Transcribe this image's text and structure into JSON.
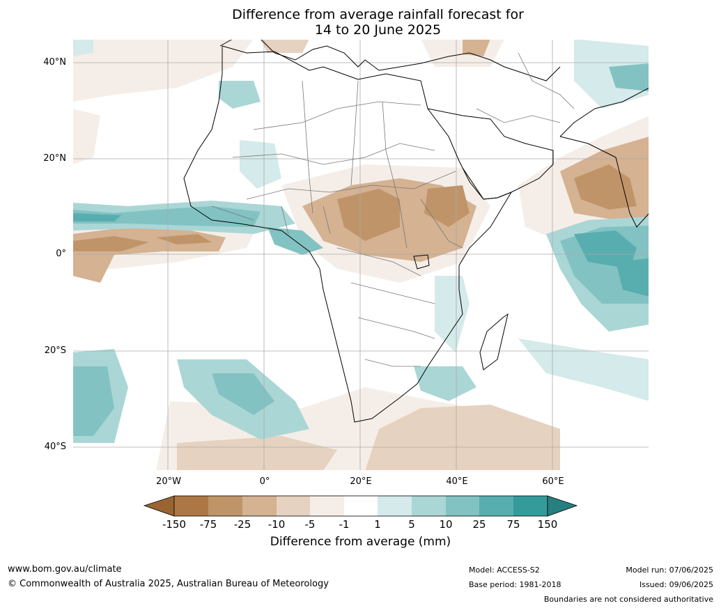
{
  "title": {
    "line1": "Difference from average rainfall forecast for",
    "line2": "14 to 20 June 2025"
  },
  "axes": {
    "lat_labels": [
      "40°N",
      "20°N",
      "0°",
      "20°S",
      "40°S"
    ],
    "lon_labels": [
      "20°W",
      "0°",
      "20°E",
      "40°E",
      "60°E"
    ]
  },
  "legend": {
    "title": "Difference from average (mm)",
    "ticks": [
      "-150",
      "-75",
      "-25",
      "-10",
      "-5",
      "-1",
      "1",
      "5",
      "10",
      "25",
      "75",
      "150"
    ],
    "colors": [
      "#9a6431",
      "#ad7745",
      "#c09469",
      "#d4b292",
      "#e6d2c0",
      "#f5eee8",
      "#ffffff",
      "#d5eaea",
      "#abd6d6",
      "#82c2c2",
      "#58aeae",
      "#349b9b",
      "#287f7f"
    ]
  },
  "footer": {
    "url": "www.bom.gov.au/climate",
    "copyright": "© Commonwealth of Australia 2025, Australian Bureau of Meteorology",
    "model": "Model: ACCESS-S2",
    "base_period": "Base period: 1981-2018",
    "model_run": "Model run: 07/06/2025",
    "issued": "Issued: 09/06/2025",
    "disclaimer": "Boundaries are not considered authoritative"
  }
}
